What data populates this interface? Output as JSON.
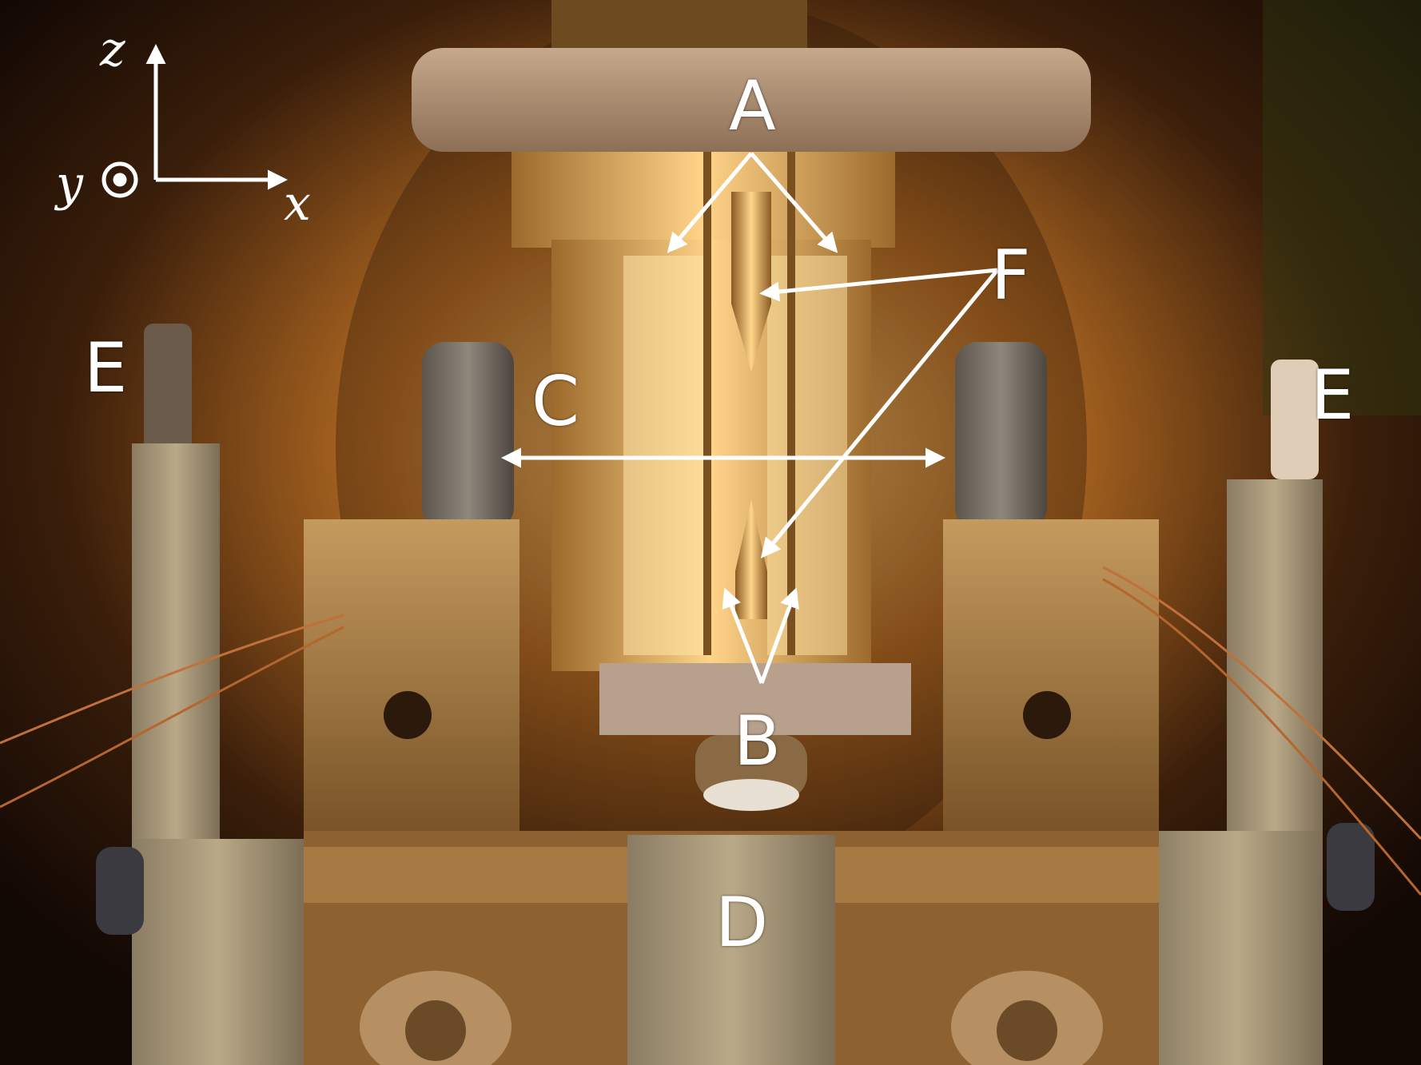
{
  "labels": {
    "A": "A",
    "B": "B",
    "C": "C",
    "D": "D",
    "E_left": "E",
    "E_right": "E",
    "F": "F"
  },
  "axes": {
    "z": "z",
    "y": "y",
    "x": "x"
  },
  "colors": {
    "glow": "#ffb347",
    "brass": "#b8864a",
    "steel": "#a89878",
    "annotation": "#ffffff"
  }
}
